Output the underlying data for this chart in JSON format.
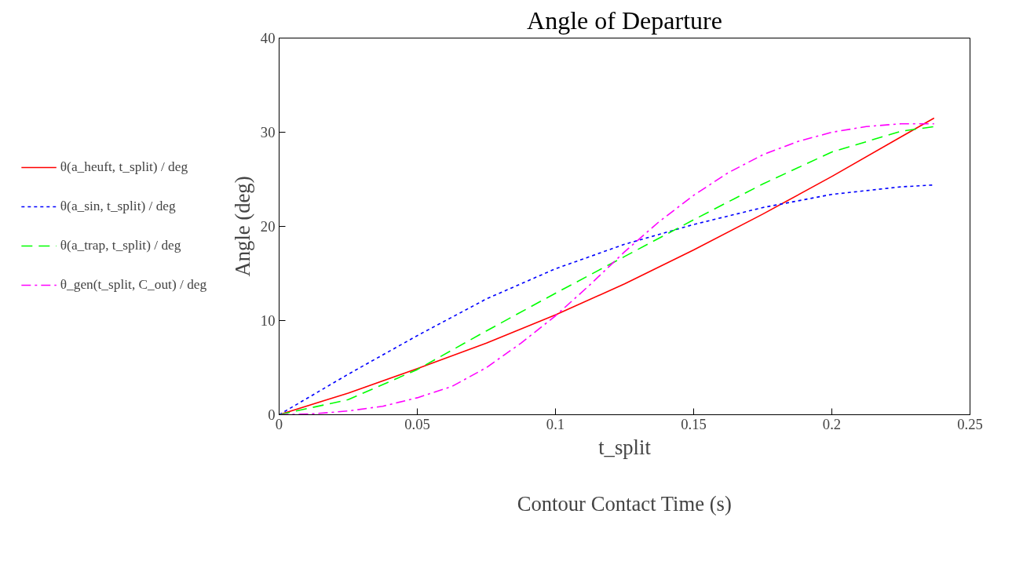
{
  "chart_data": {
    "type": "line",
    "title": "Angle of Departure",
    "xlabel": "Contour Contact Time (s)",
    "ylabel": "Angle (deg)",
    "annotations": [
      "t_split"
    ],
    "xlim": [
      0,
      0.25
    ],
    "ylim": [
      0,
      40
    ],
    "xticks": [
      0,
      0.05,
      0.1,
      0.15,
      0.2,
      0.25
    ],
    "yticks": [
      0,
      10,
      20,
      30,
      40
    ],
    "grid": false,
    "legend": "left",
    "marker": "none",
    "series": [
      {
        "name": "θ(a_heuft, t_split) / deg",
        "color": "#ff0000",
        "line_style": "solid",
        "x": [
          0,
          0.025,
          0.05,
          0.075,
          0.1,
          0.125,
          0.15,
          0.175,
          0.2,
          0.225,
          0.237
        ],
        "values": [
          0,
          2.3,
          4.9,
          7.6,
          10.6,
          13.9,
          17.5,
          21.3,
          25.3,
          29.5,
          31.5
        ]
      },
      {
        "name": "θ(a_sin, t_split) / deg",
        "color": "#0000ff",
        "line_style": "dotted",
        "x": [
          0,
          0.025,
          0.05,
          0.075,
          0.1,
          0.125,
          0.15,
          0.175,
          0.2,
          0.225,
          0.237
        ],
        "values": [
          0,
          4.3,
          8.4,
          12.3,
          15.5,
          18.1,
          20.2,
          22.0,
          23.4,
          24.2,
          24.4
        ]
      },
      {
        "name": "θ(a_trap, t_split) / deg",
        "color": "#00ff00",
        "line_style": "dashed",
        "x": [
          0,
          0.025,
          0.05,
          0.075,
          0.1,
          0.125,
          0.15,
          0.175,
          0.2,
          0.225,
          0.237
        ],
        "values": [
          0,
          1.6,
          4.8,
          8.9,
          12.9,
          16.8,
          20.7,
          24.5,
          27.9,
          30.1,
          30.6
        ]
      },
      {
        "name": "θ_gen(t_split, C_out) / deg",
        "color": "#ff00ff",
        "line_style": "dashdot",
        "x": [
          0,
          0.0125,
          0.025,
          0.0375,
          0.05,
          0.0625,
          0.075,
          0.0875,
          0.1,
          0.1125,
          0.125,
          0.1375,
          0.15,
          0.1625,
          0.175,
          0.1875,
          0.2,
          0.2125,
          0.225,
          0.237
        ],
        "values": [
          0,
          0.1,
          0.4,
          0.9,
          1.8,
          3.0,
          5.0,
          7.6,
          10.5,
          13.8,
          17.3,
          20.5,
          23.3,
          25.7,
          27.6,
          29.0,
          30.0,
          30.6,
          30.9,
          30.9
        ]
      }
    ]
  }
}
